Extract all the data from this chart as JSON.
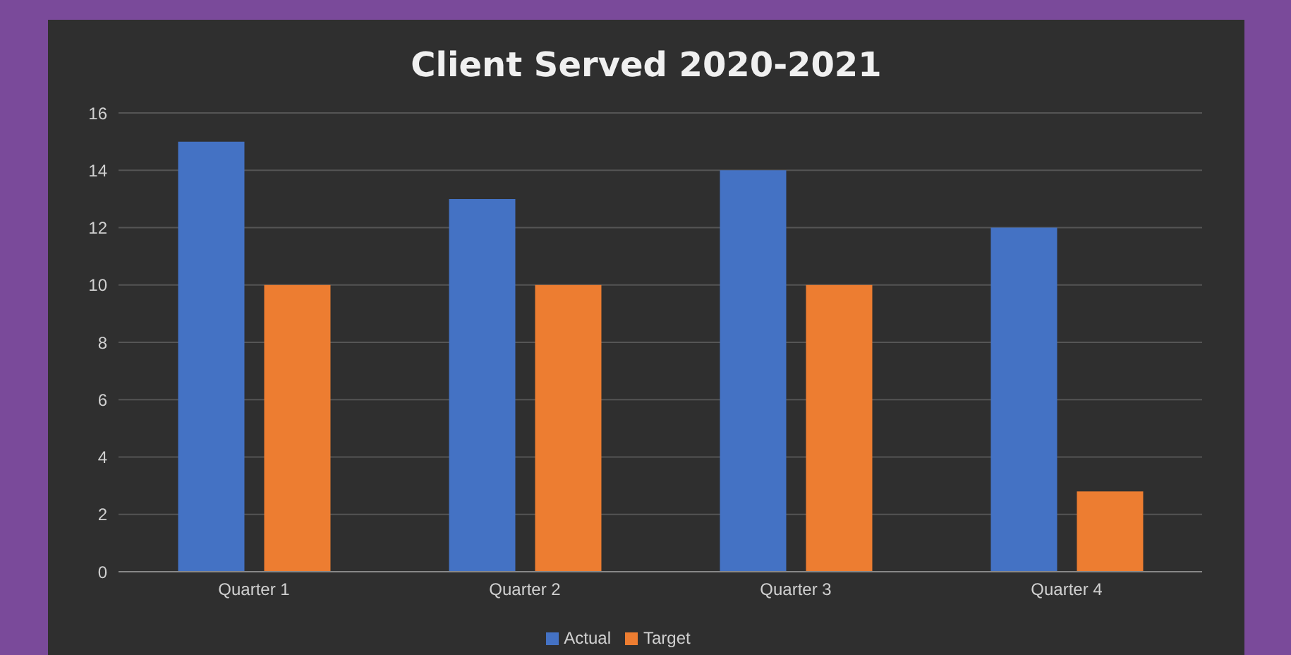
{
  "chart_data": {
    "type": "bar",
    "title": "Client Served 2020-2021",
    "categories": [
      "Quarter 1",
      "Quarter 2",
      "Quarter 3",
      "Quarter 4"
    ],
    "series": [
      {
        "name": "Actual",
        "color": "#4472c4",
        "values": [
          15,
          13,
          14,
          12
        ]
      },
      {
        "name": "Target",
        "color": "#ed7d31",
        "values": [
          10,
          10,
          10,
          2.8
        ]
      }
    ],
    "ylim": [
      0,
      16
    ],
    "yticks": [
      0,
      2,
      4,
      6,
      8,
      10,
      12,
      14,
      16
    ],
    "grid": "y",
    "legend": "bottom"
  }
}
